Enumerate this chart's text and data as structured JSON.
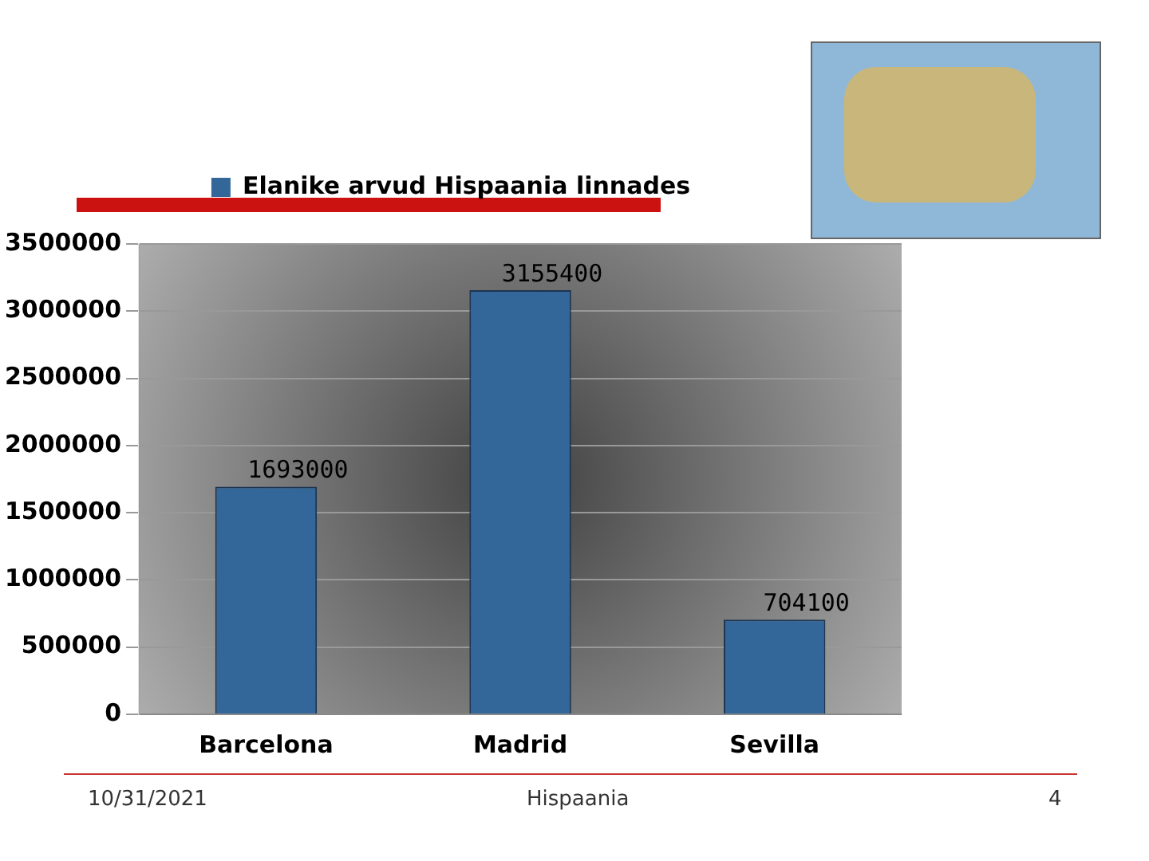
{
  "chart_data": {
    "type": "bar",
    "categories": [
      "Barcelona",
      "Madrid",
      "Sevilla"
    ],
    "series": [
      {
        "name": "Elanike arvud Hispaania linnades",
        "color": "#336699",
        "values": [
          1693000,
          3155400,
          704100
        ]
      }
    ],
    "ylim": [
      0,
      3500000
    ],
    "yticks": [
      0,
      500000,
      1000000,
      1500000,
      2000000,
      2500000,
      3000000,
      3500000
    ],
    "grid": "y",
    "legend": "top",
    "data_labels": true,
    "annotations": [
      "10/31/2021",
      "Hispaania",
      "4"
    ]
  }
}
